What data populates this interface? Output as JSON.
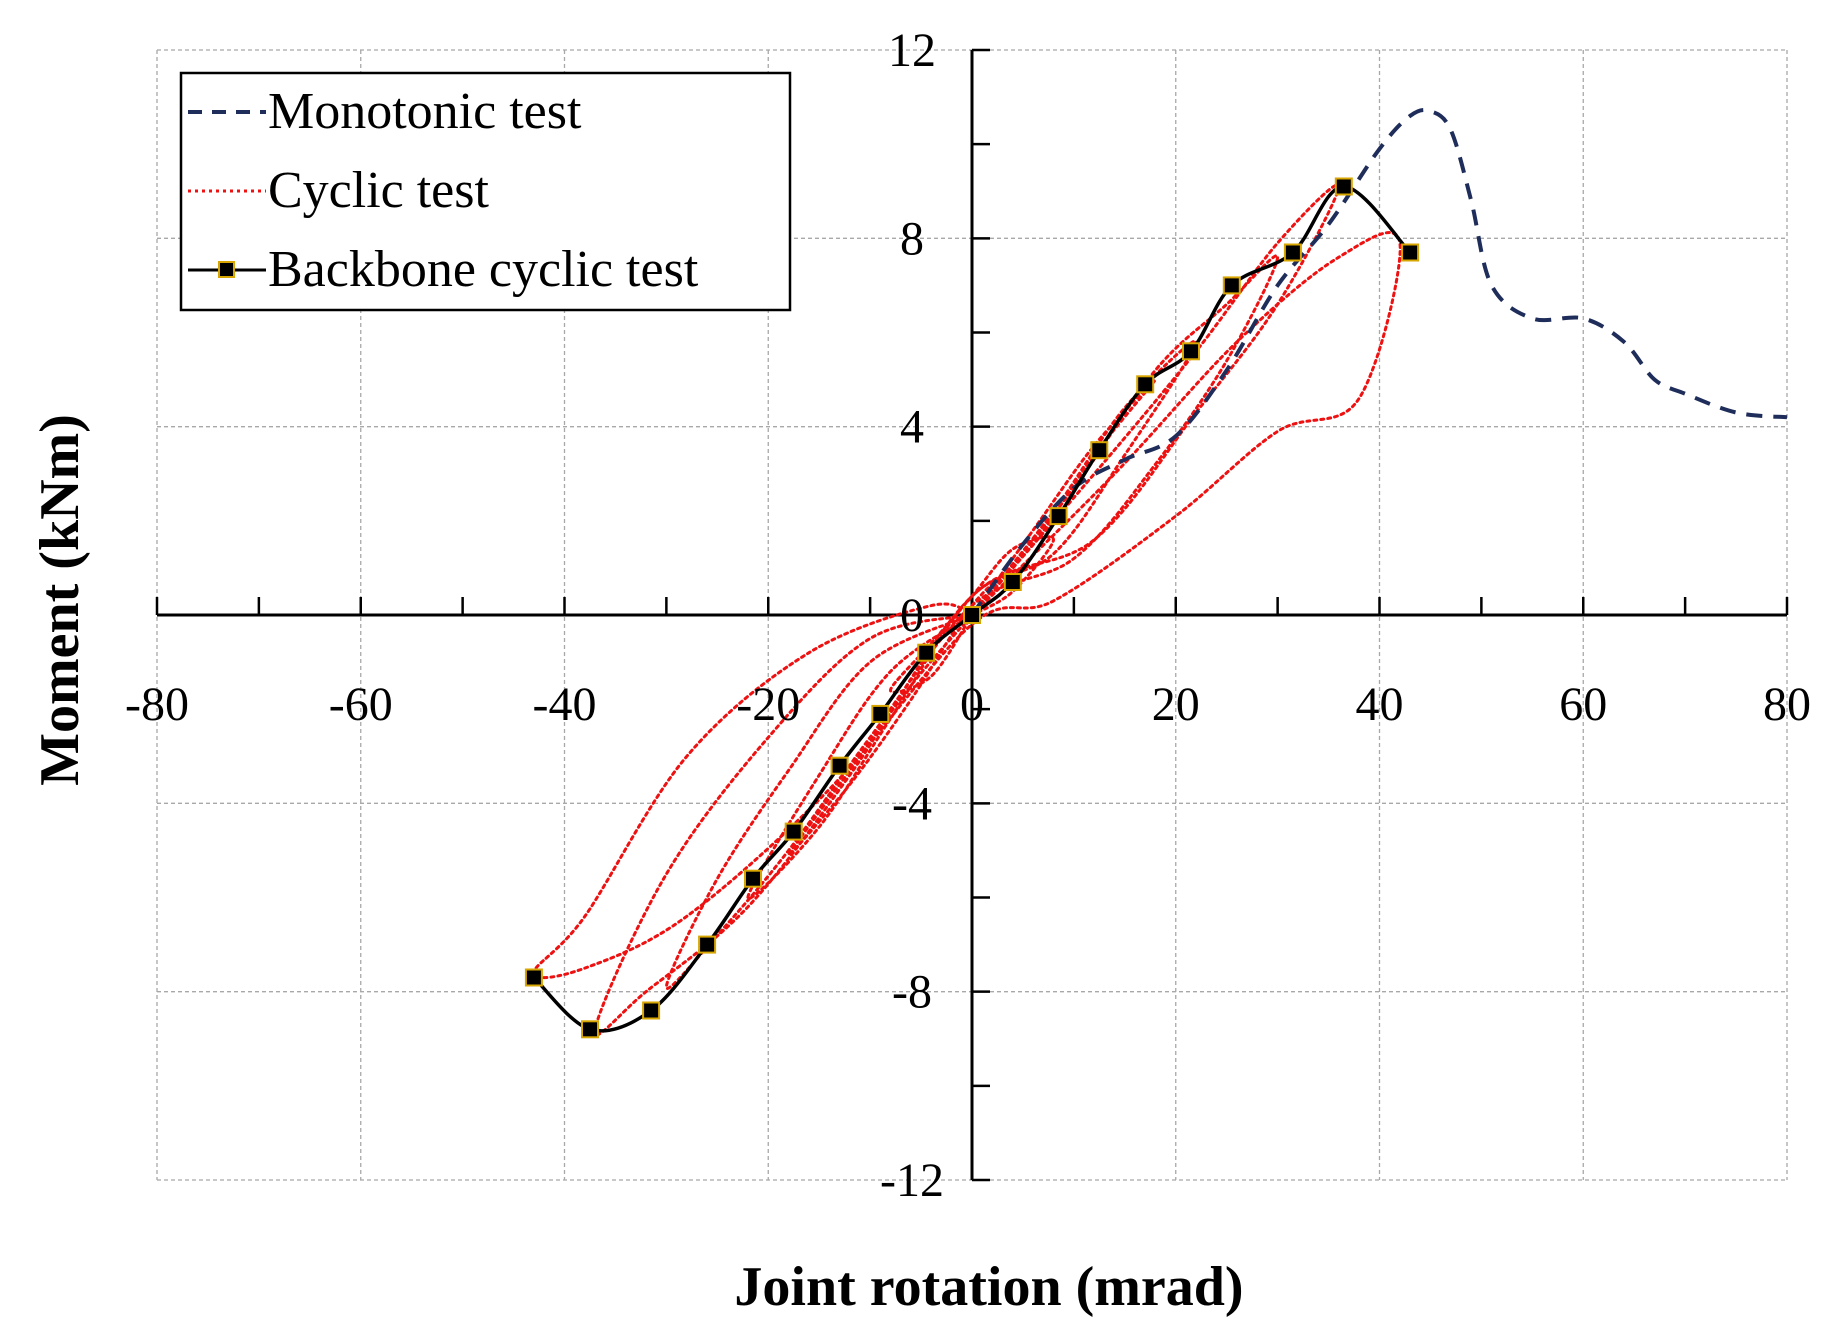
{
  "chart_data": {
    "type": "line",
    "title": "",
    "xlabel": "Joint rotation (mrad)",
    "ylabel": "Moment (kNm)",
    "xlim": [
      -80,
      80
    ],
    "ylim": [
      -12,
      12
    ],
    "x_ticks": [
      -80,
      -60,
      -40,
      -20,
      0,
      20,
      40,
      60,
      80
    ],
    "y_ticks": [
      -12,
      -8,
      -4,
      0,
      4,
      8,
      12
    ],
    "grid": true,
    "legend_position": "top-left",
    "legend": [
      "Monotonic test",
      "Cyclic test",
      "Backbone cyclic test"
    ],
    "series": [
      {
        "name": "Monotonic test",
        "style": "dashed",
        "color": "#1f2d5a",
        "x": [
          0,
          5,
          10,
          15,
          20,
          25,
          30,
          35,
          40,
          43,
          45,
          47,
          49,
          51,
          55,
          60,
          64,
          67,
          70,
          75,
          80
        ],
        "y": [
          0,
          1.5,
          2.7,
          3.3,
          3.8,
          5.2,
          7.0,
          8.3,
          9.9,
          10.6,
          10.7,
          10.3,
          8.8,
          7.0,
          6.3,
          6.3,
          5.8,
          5.0,
          4.7,
          4.3,
          4.2
        ]
      },
      {
        "name": "Cyclic test",
        "style": "dotted",
        "color": "#ee1111",
        "loops": [
          {
            "x": [
              0,
              4,
              8,
              4,
              0,
              -4,
              -8,
              -4,
              0
            ],
            "y": [
              0,
              0.5,
              1.6,
              1.4,
              0.4,
              -0.6,
              -1.6,
              -1.3,
              0
            ]
          },
          {
            "x": [
              0,
              6,
              12,
              18,
              12,
              6,
              0,
              -6,
              -12,
              -18,
              -12,
              -6,
              0
            ],
            "y": [
              0,
              1.8,
              3.6,
              5.0,
              3.4,
              1.5,
              0.2,
              -1.8,
              -3.6,
              -5.1,
              -3.3,
              -1.5,
              0
            ]
          },
          {
            "x": [
              0,
              8,
              15,
              22,
              15,
              8,
              0,
              -8,
              -15,
              -22,
              -15,
              -8,
              0
            ],
            "y": [
              0,
              2.2,
              4.4,
              5.8,
              3.4,
              1.3,
              0.4,
              -2.2,
              -4.5,
              -6.0,
              -3.4,
              -1.2,
              0
            ]
          },
          {
            "x": [
              0,
              10,
              18,
              25,
              30,
              25,
              18,
              10,
              0,
              -10,
              -18,
              -25,
              -30,
              -25,
              -18,
              -10,
              0
            ],
            "y": [
              0,
              2.7,
              5.2,
              6.6,
              7.6,
              5.4,
              3.2,
              1.2,
              0.2,
              -2.6,
              -5.0,
              -6.8,
              -7.9,
              -5.6,
              -3.3,
              -1.0,
              0
            ]
          },
          {
            "x": [
              0,
              12,
              22,
              30,
              36,
              30,
              22,
              12,
              0,
              -12,
              -22,
              -32,
              -37,
              -30,
              -20,
              -10,
              0
            ],
            "y": [
              0,
              3.0,
              5.6,
              7.9,
              9.1,
              6.6,
              4.3,
              1.6,
              0.4,
              -3.4,
              -6.2,
              -8.0,
              -8.8,
              -5.5,
              -2.6,
              -0.5,
              0
            ]
          },
          {
            "x": [
              0,
              14,
              26,
              36,
              42,
              38,
              30,
              20,
              8,
              0,
              -14,
              -28,
              -38,
              -43,
              -38,
              -28,
              -16,
              -4,
              0
            ],
            "y": [
              0,
              3.0,
              5.8,
              7.6,
              7.9,
              4.6,
              3.9,
              2.1,
              0.3,
              -0.2,
              -3.7,
              -6.4,
              -7.5,
              -7.6,
              -6.4,
              -3.0,
              -0.8,
              0.2,
              0
            ]
          }
        ]
      },
      {
        "name": "Backbone cyclic test",
        "style": "solid-markers",
        "color": "#000000",
        "marker_face": "#000000",
        "marker_edge": "#d8a600",
        "x": [
          -43,
          -37.5,
          -31.5,
          -26,
          -21.5,
          -17.5,
          -13,
          -9,
          -4.5,
          0,
          4,
          8.5,
          12.5,
          17,
          21.5,
          25.5,
          31.5,
          36.5,
          43
        ],
        "y": [
          -7.7,
          -8.8,
          -8.4,
          -7.0,
          -5.6,
          -4.6,
          -3.2,
          -2.1,
          -0.8,
          0,
          0.7,
          2.1,
          3.5,
          4.9,
          5.6,
          7.0,
          7.7,
          9.1,
          7.7
        ]
      }
    ]
  }
}
